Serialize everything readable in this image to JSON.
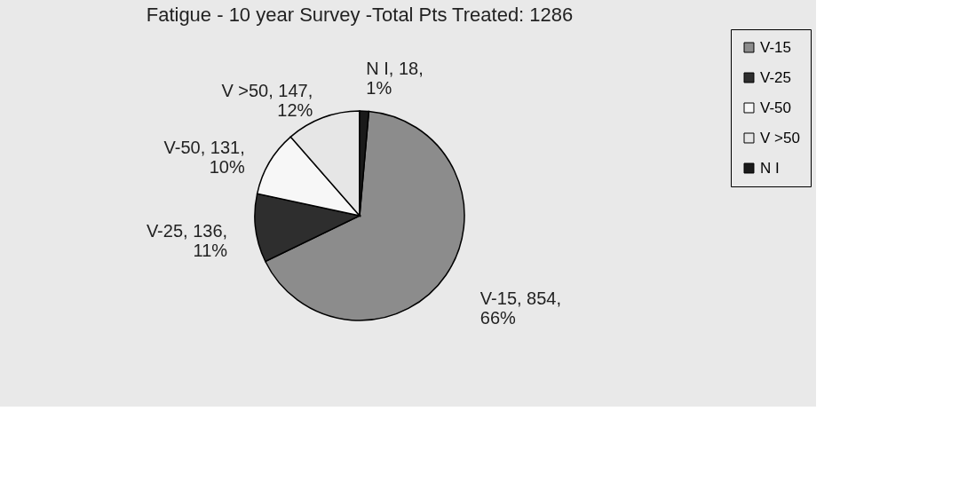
{
  "chart_data": {
    "type": "pie",
    "title": "Fatigue - 10 year Survey -Total Pts Treated: 1286",
    "categories": [
      "V-15",
      "V-25",
      "V-50",
      "V >50",
      "N I"
    ],
    "values": [
      854,
      136,
      131,
      147,
      18
    ],
    "colors": [
      "#8c8c8c",
      "#2e2e2e",
      "#f7f7f7",
      "#e6e6e6",
      "#1a1a1a"
    ],
    "value_labels": [
      "V-15, 854,\n66%",
      "V-25, 136,\n11%",
      "V-50, 131,\n10%",
      "V >50, 147,\n12%",
      "N I, 18,\n1%"
    ],
    "legend": "right"
  }
}
